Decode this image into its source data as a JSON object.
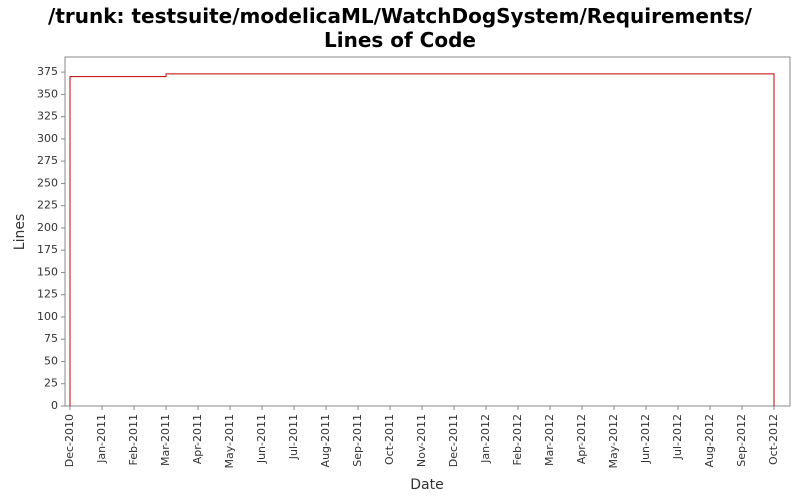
{
  "chart_data": {
    "type": "line",
    "title": "/trunk: testsuite/modelicaML/WatchDogSystem/Requirements/ Lines of Code",
    "x_label": "Date",
    "y_label": "Lines",
    "xticks": [
      "Dec-2010",
      "Jan-2011",
      "Feb-2011",
      "Mar-2011",
      "Apr-2011",
      "May-2011",
      "Jun-2011",
      "Jul-2011",
      "Aug-2011",
      "Sep-2011",
      "Oct-2011",
      "Nov-2011",
      "Dec-2011",
      "Jan-2012",
      "Feb-2012",
      "Mar-2012",
      "Apr-2012",
      "May-2012",
      "Jun-2012",
      "Jul-2012",
      "Aug-2012",
      "Sep-2012",
      "Oct-2012"
    ],
    "x": [
      "Dec-2010",
      "Dec-2010",
      "Mar-2011",
      "Mar-2011",
      "Oct-2012",
      "Oct-2012"
    ],
    "series": [
      {
        "name": "Lines",
        "color": "#c00000",
        "values": [
          0,
          370,
          370,
          373,
          373,
          0
        ]
      }
    ],
    "ylim": [
      0,
      392
    ],
    "yticks": [
      0,
      25,
      50,
      75,
      100,
      125,
      150,
      175,
      200,
      225,
      250,
      275,
      300,
      325,
      350,
      375
    ],
    "grid": false
  }
}
